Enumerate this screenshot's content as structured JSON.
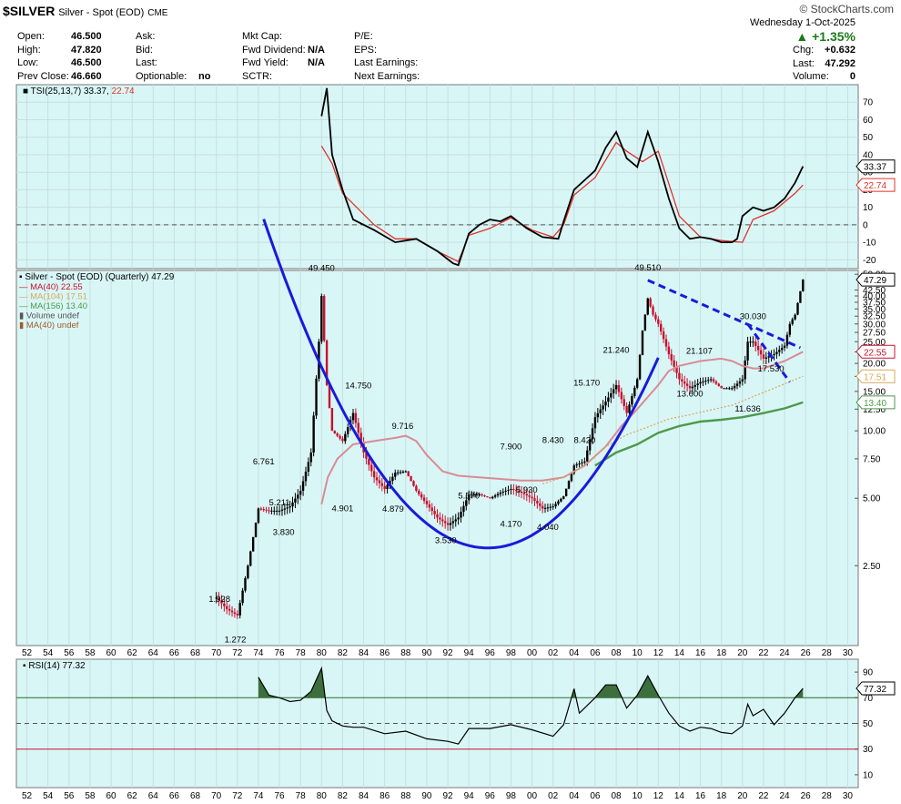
{
  "header": {
    "symbol": "$SILVER",
    "name": "Silver - Spot (EOD)",
    "exchange": "CME",
    "brand": "© StockCharts.com",
    "date": "Wednesday  1-Oct-2025",
    "change_pct": "+1.35%",
    "quote": [
      {
        "label": "Open:",
        "value": "46.500"
      },
      {
        "label": "High:",
        "value": "47.820"
      },
      {
        "label": "Low:",
        "value": "46.500"
      },
      {
        "label": "Prev Close:",
        "value": "46.660"
      }
    ],
    "quote2": [
      {
        "label": "Ask:",
        "value": ""
      },
      {
        "label": "Bid:",
        "value": ""
      },
      {
        "label": "Last:",
        "value": ""
      },
      {
        "label": "Optionable:",
        "value": "no"
      }
    ],
    "quote3": [
      {
        "label": "Mkt Cap:",
        "value": ""
      },
      {
        "label": "Fwd Dividend:",
        "value": "N/A"
      },
      {
        "label": "Fwd Yield:",
        "value": "N/A"
      },
      {
        "label": "SCTR:",
        "value": ""
      }
    ],
    "quote4": [
      {
        "label": "P/E:"
      },
      {
        "label": "EPS:"
      },
      {
        "label": "Last Earnings:"
      },
      {
        "label": "Next Earnings:"
      }
    ],
    "right": [
      {
        "label": "Chg:",
        "value": "+0.632"
      },
      {
        "label": "Last:",
        "value": "47.292"
      },
      {
        "label": "Volume:",
        "value": "0"
      }
    ]
  },
  "colors": {
    "panel_bg": "#d9f6f6",
    "up": "#000000",
    "down": "#c8102e",
    "tsi": "#000000",
    "tsi_signal": "#e0302a",
    "ma40": "#d98b93",
    "ma104": "#d4a85a",
    "ma156": "#4c9a4c",
    "trend": "#1a1adb",
    "rsi": "#000000",
    "rsi_fill": "#3d6f3d"
  },
  "chart_data": [
    {
      "type": "line",
      "title": "TSI(25,13,7) 33.37, 22.74",
      "legend": [
        {
          "name": "TSI(25,13,7) 33.37",
          "color": "#000000"
        },
        {
          "name": "22.74",
          "color": "#e0302a"
        }
      ],
      "ylim": [
        -25,
        80
      ],
      "yticks": [
        70,
        60,
        50,
        40,
        30,
        20,
        10,
        0,
        -10,
        -20
      ],
      "last_labels": [
        "33.37",
        "22.74"
      ],
      "series": [
        {
          "name": "TSI",
          "x": [
            1980.0,
            1980.5,
            1981.0,
            1982.0,
            1983.0,
            1985.0,
            1987.0,
            1989.0,
            1991.0,
            1992.5,
            1993.0,
            1994.0,
            1995.0,
            1996.0,
            1997.0,
            1998.0,
            1999.5,
            2001.0,
            2002.5,
            2003.0,
            2004.0,
            2006.0,
            2007.0,
            2008.0,
            2009.0,
            2010.0,
            2011.0,
            2012.0,
            2013.0,
            2014.0,
            2015.0,
            2016.0,
            2017.0,
            2018.0,
            2019.0,
            2019.5,
            2020.0,
            2021.0,
            2022.0,
            2023.0,
            2024.0,
            2025.0,
            2025.75
          ],
          "y": [
            62,
            78,
            40,
            20,
            3,
            -3,
            -10,
            -8,
            -15,
            -22,
            -23,
            -5,
            0,
            3,
            2,
            5,
            -2,
            -7,
            -8,
            2,
            20,
            31,
            44,
            53,
            38,
            33,
            53,
            36,
            15,
            -2,
            -8,
            -7,
            -8,
            -10,
            -10,
            -8,
            5,
            10,
            8,
            10,
            15,
            24,
            33.37
          ]
        },
        {
          "name": "Signal",
          "x": [
            1980.0,
            1981.0,
            1982.0,
            1985.0,
            1987.0,
            1989.0,
            1991.0,
            1993.0,
            1994.0,
            1996.0,
            1998.0,
            2000.0,
            2002.0,
            2003.0,
            2004.0,
            2006.0,
            2008.0,
            2009.0,
            2010.5,
            2012.0,
            2014.0,
            2016.0,
            2018.0,
            2020.0,
            2021.0,
            2023.0,
            2025.0,
            2025.75
          ],
          "y": [
            45,
            35,
            18,
            0,
            -8,
            -8,
            -15,
            -21,
            -6,
            -2,
            4,
            -3,
            -7,
            0,
            17,
            27,
            47,
            42,
            36,
            42,
            5,
            -7,
            -9,
            -10,
            3,
            8,
            18,
            22.74
          ]
        }
      ]
    },
    {
      "type": "bar",
      "title": "Silver - Spot (EOD) (Quarterly) 47.29",
      "scale": "log",
      "ylim": [
        1.1,
        52
      ],
      "yticks": [
        "50.00",
        "42.50",
        "40.00",
        "37.50",
        "35.00",
        "32.50",
        "30.00",
        "27.50",
        "25.00",
        "22.50",
        "20.00",
        "17.50",
        "15.00",
        "12.50",
        "10.00",
        "7.50",
        "5.00",
        "2.50"
      ],
      "legend": [
        {
          "name": "MA(40) 22.55",
          "color": "#c8102e"
        },
        {
          "name": "MA(104) 17.51",
          "color": "#d4a85a"
        },
        {
          "name": "MA(156) 13.40",
          "color": "#4c9a4c"
        },
        {
          "name": "Volume undef",
          "color": "#555555"
        },
        {
          "name": "MA(40) undef",
          "color": "#a05a2a"
        }
      ],
      "last_labels": [
        {
          "text": "47.29",
          "value": 47.29,
          "color": "#000000"
        },
        {
          "text": "22.55",
          "value": 22.55,
          "color": "#c8102e"
        },
        {
          "text": "17.51",
          "value": 17.51,
          "color": "#d4a85a"
        },
        {
          "text": "13.40",
          "value": 13.4,
          "color": "#4c9a4c"
        }
      ],
      "annotations": [
        {
          "text": "1.928",
          "x": 1970.3,
          "y": 1.928
        },
        {
          "text": "1.272",
          "x": 1971.8,
          "y": 1.272
        },
        {
          "text": "6.761",
          "x": 1974.5,
          "y": 6.761
        },
        {
          "text": "5.211",
          "x": 1976.0,
          "y": 5.211
        },
        {
          "text": "3.830",
          "x": 1976.4,
          "y": 3.83
        },
        {
          "text": "49.450",
          "x": 1980.0,
          "y": 49.45
        },
        {
          "text": "14.750",
          "x": 1983.5,
          "y": 14.75
        },
        {
          "text": "4.901",
          "x": 1982.0,
          "y": 4.901
        },
        {
          "text": "9.716",
          "x": 1987.7,
          "y": 9.716
        },
        {
          "text": "4.879",
          "x": 1986.8,
          "y": 4.879
        },
        {
          "text": "3.530",
          "x": 1991.8,
          "y": 3.53
        },
        {
          "text": "5.570",
          "x": 1994.0,
          "y": 5.57
        },
        {
          "text": "7.900",
          "x": 1998.0,
          "y": 7.9
        },
        {
          "text": "4.170",
          "x": 1998.0,
          "y": 4.17
        },
        {
          "text": "5.930",
          "x": 1999.5,
          "y": 5.93
        },
        {
          "text": "4.040",
          "x": 2001.5,
          "y": 4.04
        },
        {
          "text": "8.430",
          "x": 2002.0,
          "y": 8.43
        },
        {
          "text": "8.420",
          "x": 2005.0,
          "y": 8.42
        },
        {
          "text": "15.170",
          "x": 2005.2,
          "y": 15.17
        },
        {
          "text": "21.240",
          "x": 2008.0,
          "y": 21.24
        },
        {
          "text": "49.510",
          "x": 2011.0,
          "y": 49.51
        },
        {
          "text": "21.107",
          "x": 2015.9,
          "y": 21.107
        },
        {
          "text": "13.600",
          "x": 2015.0,
          "y": 13.6
        },
        {
          "text": "30.030",
          "x": 2021.0,
          "y": 30.03
        },
        {
          "text": "11.636",
          "x": 2020.5,
          "y": 11.636
        },
        {
          "text": "17.530",
          "x": 2022.7,
          "y": 17.53
        }
      ],
      "x": [
        1970.0,
        1971.0,
        1972.0,
        1973.0,
        1974.0,
        1975.0,
        1976.0,
        1977.0,
        1978.0,
        1979.0,
        1979.75,
        1980.0,
        1980.5,
        1981.0,
        1982.0,
        1983.0,
        1984.0,
        1985.0,
        1986.0,
        1987.0,
        1988.0,
        1989.0,
        1990.0,
        1991.0,
        1992.0,
        1993.0,
        1994.0,
        1995.0,
        1996.0,
        1997.0,
        1998.0,
        1999.0,
        2000.0,
        2001.0,
        2002.0,
        2003.0,
        2004.0,
        2005.0,
        2006.0,
        2007.0,
        2008.0,
        2009.0,
        2010.0,
        2010.5,
        2011.0,
        2011.5,
        2012.0,
        2013.0,
        2014.0,
        2015.0,
        2016.0,
        2017.0,
        2018.0,
        2019.0,
        2020.0,
        2020.5,
        2021.0,
        2022.0,
        2023.0,
        2024.0,
        2024.5,
        2025.0,
        2025.5,
        2025.75
      ],
      "values": [
        1.8,
        1.6,
        1.5,
        2.5,
        4.5,
        4.4,
        4.4,
        4.6,
        5.4,
        8.0,
        25,
        40,
        16,
        10,
        9,
        12,
        8,
        6.2,
        5.5,
        6.5,
        6.6,
        5.4,
        4.7,
        4.1,
        3.8,
        4.1,
        5.2,
        5.2,
        5.0,
        5.3,
        5.5,
        5.3,
        5.0,
        4.5,
        4.6,
        5.1,
        7.0,
        7.3,
        11.5,
        13.5,
        16,
        12,
        17,
        28,
        39,
        33,
        30,
        22,
        17,
        15.5,
        16.5,
        17,
        15.5,
        15.5,
        17,
        25,
        25,
        21,
        22,
        24,
        30,
        33,
        42,
        47.29
      ]
    },
    {
      "type": "line",
      "title": "RSI(14) 77.32",
      "legend": [
        {
          "name": "RSI(14) 77.32",
          "color": "#000000"
        }
      ],
      "ylim": [
        0,
        100
      ],
      "yticks": [
        90,
        70,
        50,
        30,
        10
      ],
      "last_labels": [
        "77.32"
      ],
      "series": [
        {
          "name": "RSI",
          "x": [
            1974.0,
            1975.0,
            1976.0,
            1977.0,
            1978.0,
            1979.0,
            1980.0,
            1980.5,
            1981.0,
            1982.0,
            1983.0,
            1984.0,
            1986.0,
            1988.0,
            1990.0,
            1992.0,
            1993.0,
            1994.0,
            1996.0,
            1998.0,
            2000.0,
            2002.0,
            2003.0,
            2004.0,
            2004.5,
            2006.0,
            2007.0,
            2008.0,
            2009.0,
            2010.0,
            2011.0,
            2012.0,
            2013.0,
            2014.0,
            2015.0,
            2016.0,
            2017.0,
            2018.0,
            2019.0,
            2020.0,
            2020.5,
            2021.0,
            2022.0,
            2023.0,
            2024.0,
            2025.0,
            2025.75
          ],
          "y": [
            86,
            72,
            70,
            67,
            68,
            75,
            93,
            60,
            52,
            48,
            47,
            47,
            42,
            44,
            38,
            36,
            34,
            46,
            46,
            49,
            45,
            40,
            49,
            77,
            58,
            70,
            80,
            80,
            62,
            72,
            87,
            72,
            58,
            48,
            44,
            47,
            46,
            43,
            42,
            48,
            65,
            56,
            61,
            49,
            58,
            70,
            77.32
          ]
        }
      ]
    }
  ],
  "xaxis": [
    "52",
    "54",
    "56",
    "58",
    "60",
    "62",
    "64",
    "66",
    "68",
    "70",
    "72",
    "74",
    "76",
    "78",
    "80",
    "82",
    "84",
    "86",
    "88",
    "90",
    "92",
    "94",
    "96",
    "98",
    "00",
    "02",
    "04",
    "06",
    "08",
    "10",
    "12",
    "14",
    "16",
    "18",
    "20",
    "22",
    "24",
    "26",
    "28",
    "30"
  ]
}
